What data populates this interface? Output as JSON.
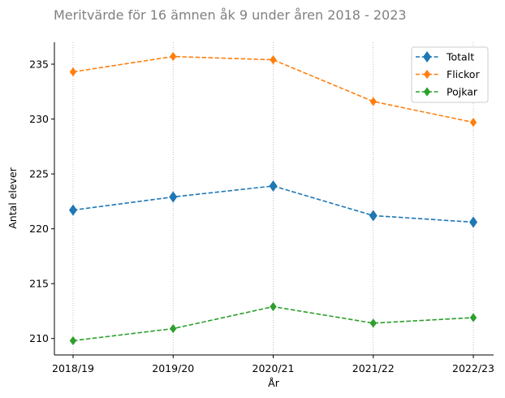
{
  "chart_data": {
    "type": "line",
    "title": "Meritvärde för 16 ämnen åk 9 under åren 2018 - 2023",
    "xlabel": "År",
    "ylabel": "Antal elever",
    "categories": [
      "2018/19",
      "2019/20",
      "2020/21",
      "2021/22",
      "2022/23"
    ],
    "ylim": [
      208.5,
      237
    ],
    "yticks": [
      210,
      215,
      220,
      225,
      230,
      235
    ],
    "grid": "vertical dotted",
    "legend_position": "top-right",
    "series": [
      {
        "name": "Totalt",
        "color": "#1f77b4",
        "values": [
          221.7,
          222.9,
          223.9,
          221.2,
          220.6
        ]
      },
      {
        "name": "Flickor",
        "color": "#ff7f0e",
        "values": [
          234.3,
          235.7,
          235.4,
          231.6,
          229.7
        ]
      },
      {
        "name": "Pojkar",
        "color": "#2ca02c",
        "values": [
          209.8,
          210.9,
          212.9,
          211.4,
          211.9
        ]
      }
    ]
  }
}
